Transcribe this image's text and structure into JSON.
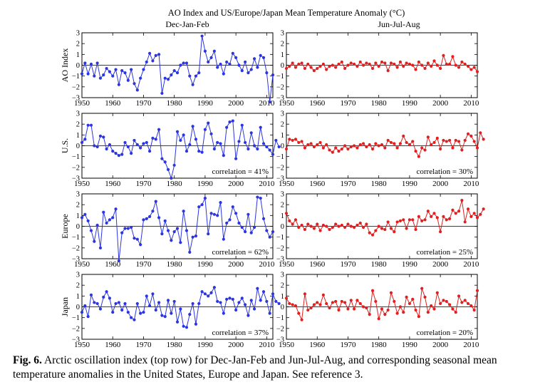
{
  "figure_title": "AO Index and US/Europe/Japan Mean Temperature Anomaly (°C)",
  "column_titles": [
    "Dec-Jan-Feb",
    "Jun-Jul-Aug"
  ],
  "row_labels": [
    "AO Index",
    "U.S.",
    "Europe",
    "Japan"
  ],
  "caption": {
    "label": "Fig. 6.",
    "text": "Arctic oscillation index (top row) for Dec-Jan-Feb and Jun-Jul-Aug, and corresponding seasonal mean temperature anomalies in the United States, Europe and Japan.  See reference 3."
  },
  "colors": {
    "djf": "#2b35e0",
    "jja": "#e02020"
  },
  "chart_data": [
    {
      "type": "line",
      "row": 0,
      "col": 0,
      "ylabel": "AO Index",
      "season": "Dec-Jan-Feb",
      "xlim": [
        1950,
        2012
      ],
      "ylim": [
        -3,
        3
      ],
      "xticks": [
        1950,
        1960,
        1970,
        1980,
        1990,
        2000,
        2010
      ],
      "yticks": [
        -3,
        -2,
        -1,
        0,
        1,
        2,
        3
      ],
      "x_start": 1950,
      "correlation": null,
      "values": [
        -0.8,
        0.2,
        -0.8,
        0.1,
        -1.0,
        0.2,
        -1.2,
        -0.9,
        -0.3,
        -0.6,
        -1.0,
        -0.4,
        -1.8,
        -0.5,
        -0.7,
        -1.4,
        -0.4,
        -1.7,
        -2.3,
        -1.2,
        -0.4,
        0.3,
        1.1,
        0.4,
        0.9,
        1.0,
        -2.6,
        -1.2,
        -1.3,
        -0.9,
        -0.5,
        -0.7,
        0.0,
        0.2,
        0.2,
        -1.0,
        -1.8,
        -1.0,
        -0.7,
        2.7,
        1.3,
        0.3,
        0.7,
        1.3,
        -0.2,
        0.1,
        -0.8,
        0.3,
        0.1,
        1.1,
        0.7,
        0.0,
        -0.5,
        0.3,
        -0.7,
        -0.4,
        0.6,
        -0.2,
        0.9,
        0.7,
        -0.7,
        -3.4,
        -0.9
      ]
    },
    {
      "type": "line",
      "row": 0,
      "col": 1,
      "season": "Jun-Jul-Aug",
      "xlim": [
        1950,
        2012
      ],
      "ylim": [
        -3,
        3
      ],
      "xticks": [
        1950,
        1960,
        1970,
        1980,
        1990,
        2000,
        2010
      ],
      "yticks": [
        -3,
        -2,
        -1,
        0,
        1,
        2,
        3
      ],
      "x_start": 1950,
      "correlation": null,
      "values": [
        -0.3,
        -0.1,
        0.2,
        -0.2,
        0.1,
        0.2,
        -0.3,
        0.1,
        -0.2,
        -0.5,
        -0.3,
        -0.1,
        0.1,
        -0.4,
        -0.1,
        0.0,
        -0.2,
        0.1,
        0.3,
        -0.3,
        0.0,
        0.2,
        0.1,
        -0.1,
        0.3,
        0.0,
        0.2,
        0.1,
        -0.3,
        0.2,
        -0.1,
        0.3,
        0.2,
        -0.5,
        0.2,
        0.1,
        -0.2,
        0.3,
        -0.1,
        0.2,
        0.1,
        0.0,
        -0.4,
        0.3,
        0.0,
        -0.3,
        0.2,
        -0.1,
        0.4,
        0.0,
        -0.3,
        0.9,
        0.1,
        0.1,
        0.8,
        0.0,
        -0.2,
        0.3,
        0.1,
        -0.1,
        -0.4,
        -0.2,
        -0.6
      ]
    },
    {
      "type": "line",
      "row": 1,
      "col": 0,
      "ylabel": "U.S.",
      "season": "Dec-Jan-Feb",
      "xlim": [
        1950,
        2012
      ],
      "ylim": [
        -3,
        3
      ],
      "xticks": [
        1950,
        1960,
        1970,
        1980,
        1990,
        2000,
        2010
      ],
      "yticks": [
        -3,
        -2,
        -1,
        0,
        1,
        2,
        3
      ],
      "x_start": 1950,
      "correlation": "correlation = 41%",
      "values": [
        0.3,
        0.6,
        1.9,
        1.9,
        0.0,
        -0.1,
        0.9,
        0.8,
        -0.3,
        0.1,
        -0.5,
        -0.7,
        -0.9,
        -0.8,
        0.3,
        -0.1,
        -0.7,
        0.5,
        0.1,
        -0.2,
        0.2,
        0.3,
        -0.5,
        0.7,
        0.6,
        1.5,
        -1.2,
        -1.5,
        -2.2,
        -3.0,
        -1.8,
        1.3,
        0.5,
        1.0,
        -0.5,
        0.1,
        1.8,
        0.6,
        -0.5,
        -0.6,
        1.5,
        2.1,
        1.1,
        -0.3,
        0.3,
        0.2,
        -0.9,
        1.7,
        2.2,
        2.3,
        -1.2,
        0.4,
        1.9,
        0.3,
        -0.3,
        1.2,
        0.0,
        -0.3,
        1.7,
        0.2,
        -0.1,
        -0.4,
        -0.8,
        0.5,
        -0.1
      ]
    },
    {
      "type": "line",
      "row": 1,
      "col": 1,
      "season": "Jun-Jul-Aug",
      "xlim": [
        1950,
        2012
      ],
      "ylim": [
        -3,
        3
      ],
      "xticks": [
        1950,
        1960,
        1970,
        1980,
        1990,
        2000,
        2010
      ],
      "yticks": [
        -3,
        -2,
        -1,
        0,
        1,
        2,
        3
      ],
      "x_start": 1950,
      "correlation": "correlation = 30%",
      "values": [
        -0.3,
        0.6,
        0.5,
        0.6,
        0.3,
        0.4,
        -0.2,
        0.1,
        0.2,
        -0.1,
        0.1,
        0.3,
        -0.2,
        0.1,
        -0.4,
        -0.6,
        -0.2,
        -0.5,
        -0.3,
        0.0,
        -0.3,
        -0.1,
        0.0,
        -0.2,
        0.1,
        0.2,
        -0.1,
        0.1,
        -0.3,
        0.2,
        0.0,
        0.1,
        -0.2,
        0.5,
        0.3,
        0.2,
        -0.2,
        0.2,
        0.9,
        0.3,
        0.1,
        0.4,
        -0.5,
        -1.0,
        -0.2,
        -0.4,
        0.8,
        0.1,
        0.3,
        0.7,
        -0.3,
        0.5,
        0.4,
        0.5,
        -0.2,
        0.5,
        0.4,
        -0.4,
        0.5,
        1.1,
        0.9,
        0.4,
        -0.2,
        1.2,
        0.6
      ]
    },
    {
      "type": "line",
      "row": 2,
      "col": 0,
      "ylabel": "Europe",
      "season": "Dec-Jan-Feb",
      "xlim": [
        1950,
        2012
      ],
      "ylim": [
        -3,
        3
      ],
      "xticks": [
        1950,
        1960,
        1970,
        1980,
        1990,
        2000,
        2010
      ],
      "yticks": [
        -3,
        -2,
        -1,
        0,
        1,
        2,
        3
      ],
      "x_start": 1950,
      "correlation": "correlation = 62%",
      "values": [
        0.8,
        1.1,
        0.5,
        -0.4,
        -1.4,
        0.1,
        -2.0,
        1.3,
        0.3,
        0.6,
        0.8,
        1.6,
        -3.2,
        -0.6,
        -0.2,
        -0.2,
        -0.1,
        -1.1,
        -1.2,
        -1.7,
        0.6,
        0.7,
        0.9,
        1.4,
        2.3,
        0.8,
        -0.7,
        0.5,
        -0.4,
        -1.3,
        -0.5,
        -0.2,
        -1.5,
        1.4,
        -0.4,
        -2.4,
        -1.0,
        -0.9,
        1.8,
        2.0,
        2.6,
        -0.7,
        1.2,
        1.1,
        1.0,
        2.2,
        -1.2,
        0.3,
        0.6,
        1.8,
        1.2,
        0.3,
        -0.1,
        -0.5,
        1.1,
        -0.6,
        -0.1,
        2.7,
        2.6,
        0.7,
        -0.4,
        -1.0,
        -0.5
      ]
    },
    {
      "type": "line",
      "row": 2,
      "col": 1,
      "season": "Jun-Jul-Aug",
      "xlim": [
        1950,
        2012
      ],
      "ylim": [
        -3,
        3
      ],
      "xticks": [
        1950,
        1960,
        1970,
        1980,
        1990,
        2000,
        2010
      ],
      "yticks": [
        -3,
        -2,
        -1,
        0,
        1,
        2,
        3
      ],
      "x_start": 1950,
      "correlation": "correlation = 25%",
      "values": [
        1.2,
        0.5,
        0.2,
        0.6,
        -0.1,
        0.1,
        -0.3,
        0.2,
        0.0,
        -0.2,
        0.2,
        -0.4,
        0.1,
        0.0,
        -0.3,
        -0.1,
        0.2,
        0.0,
        0.1,
        -0.1,
        0.2,
        0.0,
        -0.1,
        0.1,
        0.3,
        -0.1,
        0.2,
        -0.6,
        -0.8,
        -0.4,
        0.0,
        -0.2,
        -0.3,
        0.4,
        -0.2,
        -0.5,
        0.4,
        0.5,
        0.6,
        -0.2,
        0.6,
        0.6,
        -0.3,
        0.9,
        0.5,
        0.6,
        1.4,
        0.9,
        1.2,
        0.8,
        -0.5,
        0.9,
        0.6,
        0.7,
        1.5,
        1.2,
        1.4,
        2.4,
        0.4,
        1.6,
        0.9,
        1.2,
        0.8,
        1.1,
        1.6
      ]
    },
    {
      "type": "line",
      "row": 3,
      "col": 0,
      "ylabel": "Japan",
      "season": "Dec-Jan-Feb",
      "xlim": [
        1950,
        2012
      ],
      "ylim": [
        -3,
        3
      ],
      "xticks": [
        1950,
        1960,
        1970,
        1980,
        1990,
        2000,
        2010
      ],
      "yticks": [
        -3,
        -2,
        -1,
        0,
        1,
        2,
        3
      ],
      "x_start": 1950,
      "correlation": "correlation = 37%",
      "values": [
        -0.5,
        0.1,
        -0.9,
        1.1,
        0.4,
        0.3,
        -0.2,
        0.9,
        1.4,
        0.8,
        -0.5,
        0.3,
        0.4,
        -0.3,
        0.3,
        -0.5,
        -1.0,
        -1.2,
        0.3,
        -0.6,
        -0.5,
        1.0,
        0.1,
        1.2,
        -0.3,
        0.4,
        -0.8,
        -0.9,
        0.6,
        -0.6,
        0.5,
        -1.4,
        -0.2,
        -1.8,
        -1.9,
        -0.7,
        0.3,
        -1.6,
        0.3,
        1.4,
        1.2,
        1.0,
        1.3,
        1.8,
        0.5,
        0.4,
        -0.6,
        0.7,
        0.8,
        0.7,
        -0.3,
        0.4,
        0.8,
        0.2,
        -0.8,
        0.6,
        -0.2,
        1.7,
        0.6,
        1.4,
        0.5,
        -0.6,
        1.2,
        0.5,
        0.3
      ]
    },
    {
      "type": "line",
      "row": 3,
      "col": 1,
      "season": "Jun-Jul-Aug",
      "xlim": [
        1950,
        2012
      ],
      "ylim": [
        -3,
        3
      ],
      "xticks": [
        1950,
        1960,
        1970,
        1980,
        1990,
        2000,
        2010
      ],
      "yticks": [
        -3,
        -2,
        -1,
        0,
        1,
        2,
        3
      ],
      "x_start": 1950,
      "correlation": "correlation = 20%",
      "values": [
        0.8,
        0.3,
        0.2,
        0.1,
        -0.6,
        -1.2,
        1.2,
        -0.3,
        -0.1,
        0.2,
        0.4,
        0.2,
        1.1,
        0.3,
        -0.1,
        0.4,
        0.5,
        -0.3,
        0.5,
        0.4,
        -0.2,
        0.6,
        -0.2,
        0.6,
        0.3,
        0.0,
        -0.1,
        -0.7,
        1.5,
        0.5,
        -1.1,
        -0.2,
        -0.7,
        -0.3,
        1.3,
        0.5,
        -0.6,
        0.0,
        -0.5,
        0.9,
        0.3,
        0.7,
        -0.3,
        -0.9,
        1.7,
        0.9,
        -0.5,
        0.1,
        -0.2,
        1.3,
        0.3,
        0.6,
        0.5,
        0.2,
        -0.2,
        -0.5,
        1.0,
        0.4,
        0.6,
        0.3,
        0.1,
        -0.3,
        1.5
      ]
    }
  ]
}
